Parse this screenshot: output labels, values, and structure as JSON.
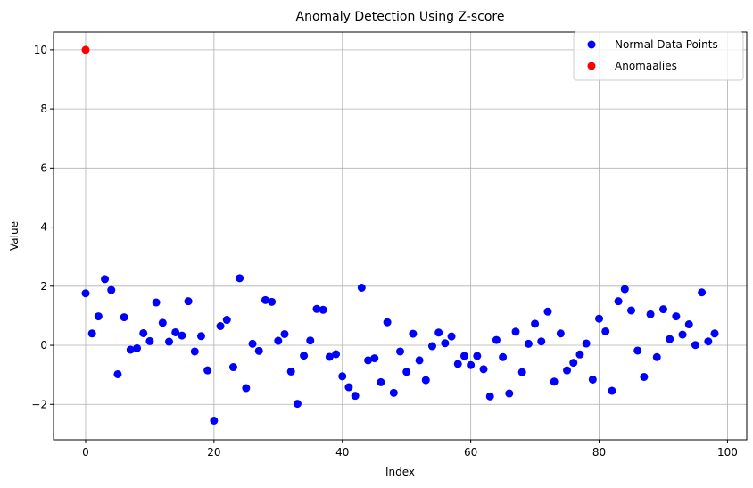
{
  "chart_data": {
    "type": "scatter",
    "title": "Anomaly Detection  Using Z-score",
    "xlabel": "Index",
    "ylabel": "Value",
    "xlim": [
      -5,
      103
    ],
    "ylim": [
      -3.2,
      10.6
    ],
    "xticks": [
      0,
      20,
      40,
      60,
      80,
      100
    ],
    "yticks": [
      -2,
      0,
      2,
      4,
      6,
      8,
      10
    ],
    "grid": true,
    "legend_position": "top-right",
    "series": [
      {
        "name": "Normal Data Points",
        "color": "#0000ff",
        "x": [
          0,
          1,
          2,
          3,
          4,
          5,
          6,
          7,
          8,
          9,
          10,
          11,
          12,
          13,
          14,
          15,
          16,
          17,
          18,
          19,
          20,
          21,
          22,
          23,
          24,
          25,
          26,
          27,
          28,
          29,
          30,
          31,
          32,
          33,
          34,
          35,
          36,
          37,
          38,
          39,
          40,
          41,
          42,
          43,
          44,
          45,
          46,
          47,
          48,
          49,
          50,
          51,
          52,
          53,
          54,
          55,
          56,
          57,
          58,
          59,
          60,
          61,
          62,
          63,
          64,
          65,
          66,
          67,
          68,
          69,
          70,
          71,
          72,
          73,
          74,
          75,
          76,
          77,
          78,
          79,
          80,
          81,
          82,
          83,
          84,
          85,
          86,
          87,
          88,
          89,
          90,
          91,
          92,
          93,
          94,
          95,
          96,
          97,
          98
        ],
        "y": [
          1.76,
          0.4,
          0.98,
          2.24,
          1.87,
          -0.98,
          0.95,
          -0.15,
          -0.1,
          0.41,
          0.14,
          1.45,
          0.76,
          0.12,
          0.44,
          0.33,
          1.49,
          -0.21,
          0.31,
          -0.85,
          -2.55,
          0.65,
          0.86,
          -0.74,
          2.27,
          -1.45,
          0.05,
          -0.19,
          1.53,
          1.47,
          0.15,
          0.38,
          -0.89,
          -1.98,
          -0.35,
          0.16,
          1.23,
          1.2,
          -0.39,
          -0.3,
          -1.05,
          -1.42,
          -1.71,
          1.95,
          -0.51,
          -0.44,
          -1.25,
          0.78,
          -1.61,
          -0.21,
          -0.9,
          0.39,
          -0.51,
          -1.18,
          -0.03,
          0.43,
          0.07,
          0.3,
          -0.63,
          -0.36,
          -0.67,
          -0.36,
          -0.81,
          -1.73,
          0.18,
          -0.4,
          -1.63,
          0.46,
          -0.91,
          0.05,
          0.73,
          0.13,
          1.14,
          -1.23,
          0.4,
          -0.85,
          -0.59,
          -0.31,
          0.06,
          -1.16,
          0.9,
          0.47,
          -1.54,
          1.49,
          1.9,
          1.18,
          -0.18,
          -1.07,
          1.05,
          -0.4,
          1.22,
          0.21,
          0.98,
          0.36,
          0.71,
          0.01,
          1.79,
          0.13,
          0.4
        ]
      },
      {
        "name": "Anomaalies",
        "color": "#ff0000",
        "x": [
          0
        ],
        "y": [
          10
        ]
      }
    ]
  }
}
